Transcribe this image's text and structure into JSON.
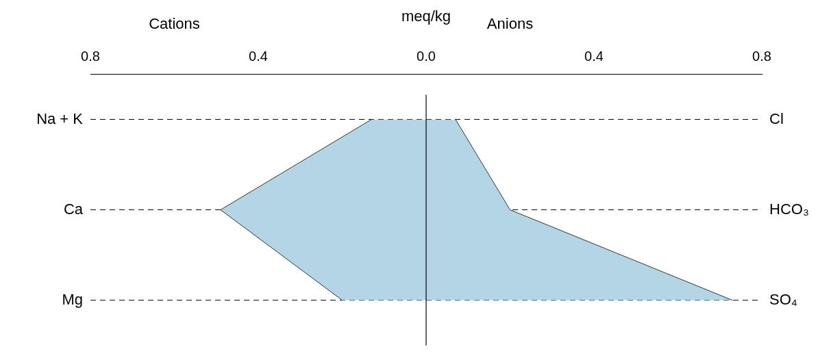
{
  "chart_data": {
    "type": "area",
    "orientation": "horizontal",
    "xlabel": "meq/kg",
    "annotations": [
      "Cations",
      "Anions"
    ],
    "categories": [
      "Na + K",
      "Ca",
      "Mg"
    ],
    "y2_categories": [
      "Cl",
      "HCO₃",
      "SO₄"
    ],
    "series": [
      {
        "color": "#b3d5e6",
        "values": [
          -0.13,
          -0.49,
          -0.2
        ]
      },
      {
        "color": "#b3d5e6",
        "values": [
          0.07,
          0.2,
          0.73
        ]
      }
    ],
    "xlim": [
      -0.8,
      0.8
    ],
    "xticks": [
      {
        "value": -0.8,
        "label": "0.8"
      },
      {
        "value": -0.4,
        "label": "0.4"
      },
      {
        "value": 0,
        "label": "0.0"
      },
      {
        "value": 0.4,
        "label": "0.4"
      },
      {
        "value": 0.8,
        "label": "0.8"
      }
    ],
    "ref_lines": [
      {
        "axis": "x",
        "value": 0,
        "color": "#000000"
      }
    ],
    "grid": "y",
    "line_style": "dashed",
    "legend": false
  }
}
